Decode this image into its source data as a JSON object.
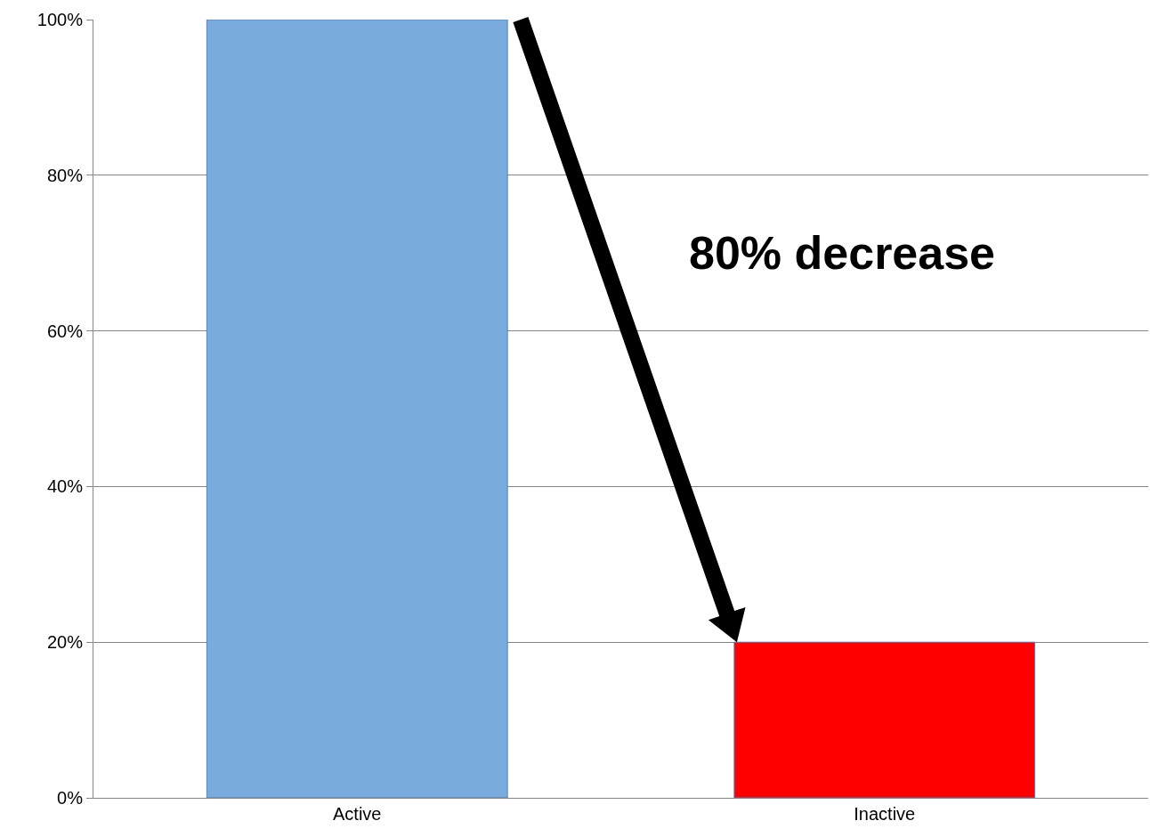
{
  "chart_data": {
    "type": "bar",
    "categories": [
      "Active",
      "Inactive"
    ],
    "values": [
      100,
      20
    ],
    "colors": [
      "#7aabdd",
      "#ff0000"
    ],
    "ylim": [
      0,
      100
    ],
    "yticks": [
      {
        "value": 0,
        "label": "0%"
      },
      {
        "value": 20,
        "label": "20%"
      },
      {
        "value": 40,
        "label": "40%"
      },
      {
        "value": 60,
        "label": "60%"
      },
      {
        "value": 80,
        "label": "80%"
      },
      {
        "value": 100,
        "label": "100%"
      }
    ],
    "grid": "y",
    "annotations": [
      "80% decrease"
    ]
  }
}
